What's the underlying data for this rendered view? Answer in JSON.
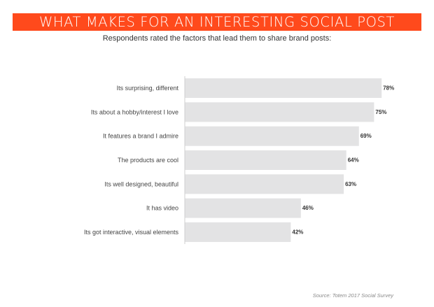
{
  "header": {
    "title": "WHAT MAKES FOR AN INTERESTING SOCIAL POST",
    "subtitle": "Respondents rated the factors that lead them to share brand posts:"
  },
  "footer": {
    "source": "Source: Totem 2017 Social Survey"
  },
  "colors": {
    "banner": "#ff4a1c",
    "bar": "#e3e3e4",
    "axis": "#cfcfcf"
  },
  "chart_data": {
    "type": "bar",
    "orientation": "horizontal",
    "title": "WHAT MAKES FOR AN INTERESTING SOCIAL POST",
    "subtitle": "Respondents rated the factors that lead them to share brand posts:",
    "categories": [
      "Its surprising, different",
      "Its about a hobby/interest I love",
      "It features a brand I admire",
      "The products are cool",
      "Its well designed, beautiful",
      "It has video",
      "Its got interactive, visual elements"
    ],
    "values": [
      78,
      75,
      69,
      64,
      63,
      46,
      42
    ],
    "value_labels": [
      "78%",
      "75%",
      "69%",
      "64%",
      "63%",
      "46%",
      "42%"
    ],
    "unit": "%",
    "xlim": [
      0,
      100
    ],
    "grid": false,
    "legend": "none"
  }
}
